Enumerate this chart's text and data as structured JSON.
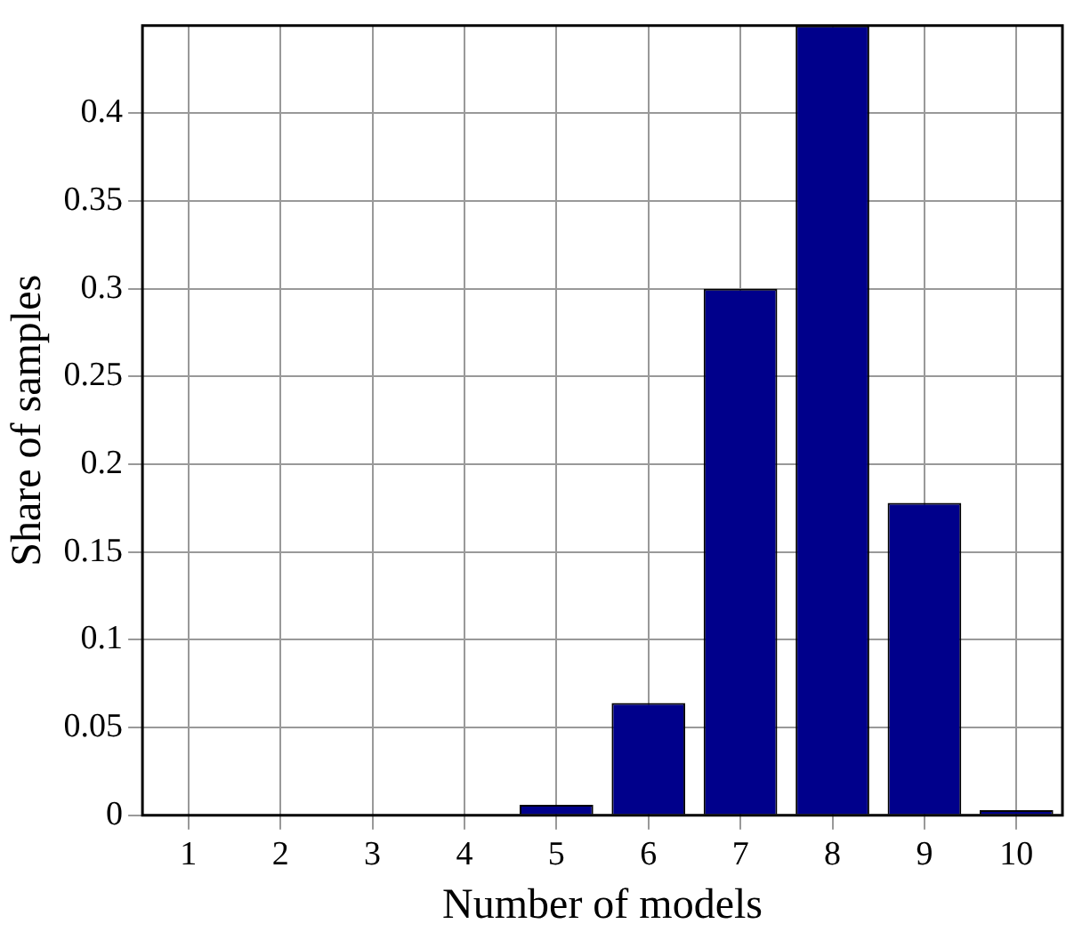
{
  "chart_data": {
    "type": "bar",
    "xlabel": "Number of models",
    "ylabel": "Share of samples",
    "categories": [
      "1",
      "2",
      "3",
      "4",
      "5",
      "6",
      "7",
      "8",
      "9",
      "10"
    ],
    "values": [
      0,
      0,
      0,
      0,
      0.006,
      0.064,
      0.3,
      0.45,
      0.178,
      0.003
    ],
    "color": "#00008b",
    "ylim": [
      0,
      0.45
    ],
    "yticks": [
      0,
      0.05,
      0.1,
      0.15,
      0.2,
      0.25,
      0.3,
      0.35,
      0.4
    ],
    "grid": true
  }
}
